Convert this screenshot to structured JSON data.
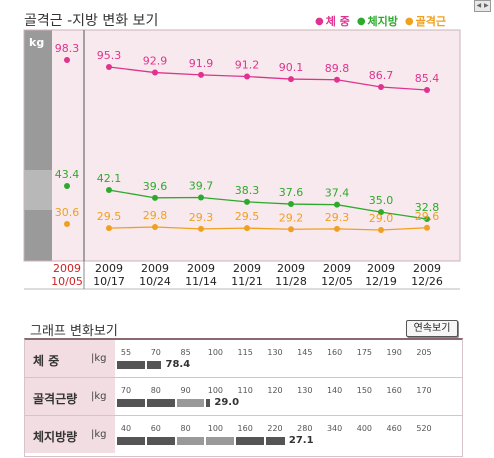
{
  "header": {
    "title": "골격근 -지방 변화 보기",
    "legend": [
      {
        "label": "체  중",
        "color": "#e0338f"
      },
      {
        "label": "체지방",
        "color": "#2daa2d"
      },
      {
        "label": "골격근",
        "color": "#f0a020"
      }
    ]
  },
  "chart_data": [
    {
      "type": "line",
      "unit_label": "kg",
      "baseline": {
        "year": "2009",
        "date": "10/05"
      },
      "x": [
        {
          "year": "2009",
          "date": "10/17"
        },
        {
          "year": "2009",
          "date": "10/24"
        },
        {
          "year": "2009",
          "date": "11/14"
        },
        {
          "year": "2009",
          "date": "11/21"
        },
        {
          "year": "2009",
          "date": "11/28"
        },
        {
          "year": "2009",
          "date": "12/05"
        },
        {
          "year": "2009",
          "date": "12/19"
        },
        {
          "year": "2009",
          "date": "12/26"
        }
      ],
      "series": [
        {
          "name": "체  중",
          "color": "#e0338f",
          "baseline": 98.3,
          "values": [
            95.3,
            92.9,
            91.9,
            91.2,
            90.1,
            89.8,
            86.7,
            85.4
          ]
        },
        {
          "name": "체지방",
          "color": "#2daa2d",
          "baseline": 43.4,
          "values": [
            42.1,
            39.6,
            39.7,
            38.3,
            37.6,
            37.4,
            35.0,
            32.8
          ]
        },
        {
          "name": "골격근",
          "color": "#f0a020",
          "baseline": 30.6,
          "values": [
            29.5,
            29.8,
            29.3,
            29.5,
            29.2,
            29.3,
            29.0,
            29.6
          ]
        }
      ]
    },
    {
      "type": "bar",
      "title": "그래프 변화보기",
      "rows": [
        {
          "label": "체    중",
          "unit": "kg",
          "ticks": [
            55,
            70,
            85,
            100,
            115,
            130,
            145,
            160,
            175,
            190,
            205
          ],
          "value": 78.4,
          "value_text": "78.4"
        },
        {
          "label": "골격근량",
          "unit": "kg",
          "ticks": [
            70,
            80,
            90,
            100,
            110,
            120,
            130,
            140,
            150,
            160,
            170
          ],
          "value": 29.0,
          "value_text": "29.0"
        },
        {
          "label": "체지방량",
          "unit": "kg",
          "ticks": [
            40,
            60,
            80,
            100,
            160,
            220,
            280,
            340,
            400,
            460,
            520
          ],
          "value": 27.1,
          "value_text": "27.1"
        }
      ]
    }
  ],
  "controls": {
    "continuous_label": "연속보기"
  }
}
